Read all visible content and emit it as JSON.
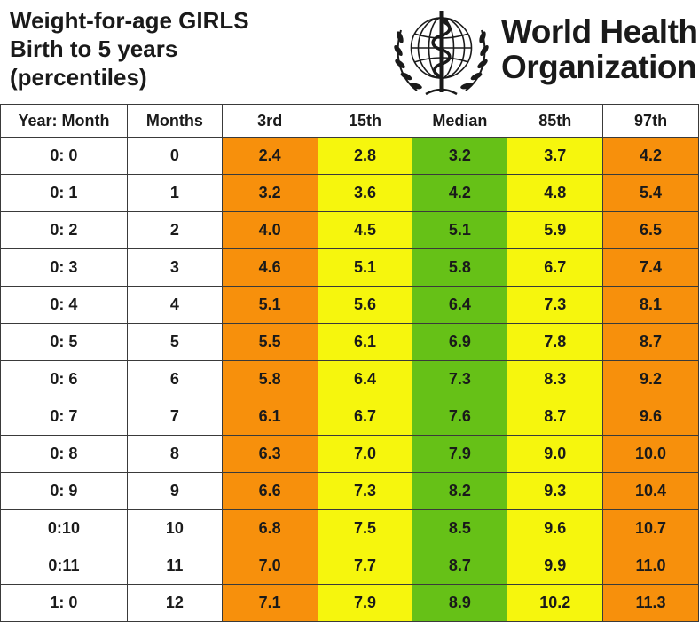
{
  "title": {
    "line1": "Weight-for-age  GIRLS",
    "line2": "Birth to 5 years",
    "line3": "(percentiles)"
  },
  "org": {
    "line1": "World Health",
    "line2": "Organization"
  },
  "colors": {
    "orange": "#f7900c",
    "yellow": "#f6f60d",
    "green": "#66c117"
  },
  "columns": [
    "Year: Month",
    "Months",
    "3rd",
    "15th",
    "Median",
    "85th",
    "97th"
  ],
  "rows": [
    {
      "ym": "0: 0",
      "months": "0",
      "p3": "2.4",
      "p15": "2.8",
      "median": "3.2",
      "p85": "3.7",
      "p97": "4.2"
    },
    {
      "ym": "0: 1",
      "months": "1",
      "p3": "3.2",
      "p15": "3.6",
      "median": "4.2",
      "p85": "4.8",
      "p97": "5.4"
    },
    {
      "ym": "0: 2",
      "months": "2",
      "p3": "4.0",
      "p15": "4.5",
      "median": "5.1",
      "p85": "5.9",
      "p97": "6.5"
    },
    {
      "ym": "0: 3",
      "months": "3",
      "p3": "4.6",
      "p15": "5.1",
      "median": "5.8",
      "p85": "6.7",
      "p97": "7.4"
    },
    {
      "ym": "0: 4",
      "months": "4",
      "p3": "5.1",
      "p15": "5.6",
      "median": "6.4",
      "p85": "7.3",
      "p97": "8.1"
    },
    {
      "ym": "0: 5",
      "months": "5",
      "p3": "5.5",
      "p15": "6.1",
      "median": "6.9",
      "p85": "7.8",
      "p97": "8.7"
    },
    {
      "ym": "0: 6",
      "months": "6",
      "p3": "5.8",
      "p15": "6.4",
      "median": "7.3",
      "p85": "8.3",
      "p97": "9.2"
    },
    {
      "ym": "0: 7",
      "months": "7",
      "p3": "6.1",
      "p15": "6.7",
      "median": "7.6",
      "p85": "8.7",
      "p97": "9.6"
    },
    {
      "ym": "0: 8",
      "months": "8",
      "p3": "6.3",
      "p15": "7.0",
      "median": "7.9",
      "p85": "9.0",
      "p97": "10.0"
    },
    {
      "ym": "0: 9",
      "months": "9",
      "p3": "6.6",
      "p15": "7.3",
      "median": "8.2",
      "p85": "9.3",
      "p97": "10.4"
    },
    {
      "ym": "0:10",
      "months": "10",
      "p3": "6.8",
      "p15": "7.5",
      "median": "8.5",
      "p85": "9.6",
      "p97": "10.7"
    },
    {
      "ym": "0:11",
      "months": "11",
      "p3": "7.0",
      "p15": "7.7",
      "median": "8.7",
      "p85": "9.9",
      "p97": "11.0"
    },
    {
      "ym": "1: 0",
      "months": "12",
      "p3": "7.1",
      "p15": "7.9",
      "median": "8.9",
      "p85": "10.2",
      "p97": "11.3"
    }
  ]
}
